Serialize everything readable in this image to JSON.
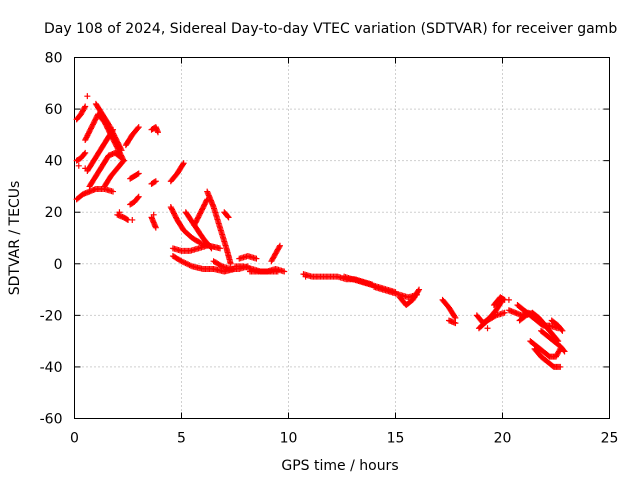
{
  "chart_data": {
    "type": "scatter",
    "title": "Day 108 of 2024, Sidereal Day-to-day VTEC variation (SDTVAR) for receiver gamb",
    "xlabel": "GPS time / hours",
    "ylabel": "SDTVAR / TECUs",
    "xlim": [
      0,
      25
    ],
    "ylim": [
      -60,
      80
    ],
    "xticks": [
      0,
      5,
      10,
      15,
      20,
      25
    ],
    "yticks": [
      -60,
      -40,
      -20,
      0,
      20,
      40,
      60,
      80
    ],
    "grid": true,
    "marker": "+",
    "color": "#ff0000",
    "arcs": [
      {
        "x": [
          0.1,
          0.3,
          0.5
        ],
        "y": [
          56,
          58,
          61
        ]
      },
      {
        "x": [
          0.1,
          0.3,
          0.5
        ],
        "y": [
          40,
          41,
          43
        ]
      },
      {
        "x": [
          0.1,
          0.4,
          0.7,
          1.0,
          1.4,
          1.8
        ],
        "y": [
          25,
          27,
          28,
          29,
          29,
          28
        ]
      },
      {
        "x": [
          0.5,
          0.8,
          1.1,
          1.4,
          1.7,
          2.0,
          2.3
        ],
        "y": [
          48,
          53,
          58,
          55,
          50,
          45,
          40
        ]
      },
      {
        "x": [
          0.6,
          0.9,
          1.2,
          1.5,
          1.8
        ],
        "y": [
          36,
          40,
          44,
          48,
          52
        ]
      },
      {
        "x": [
          0.7,
          1.0,
          1.3,
          1.6,
          1.9,
          2.2
        ],
        "y": [
          30,
          34,
          38,
          42,
          43,
          41
        ]
      },
      {
        "x": [
          1.0,
          1.3,
          1.6,
          1.9,
          2.2
        ],
        "y": [
          62,
          58,
          54,
          49,
          44
        ]
      },
      {
        "x": [
          1.4,
          1.7,
          2.0,
          2.3
        ],
        "y": [
          30,
          34,
          37,
          40
        ]
      },
      {
        "x": [
          2.0,
          2.3,
          2.5
        ],
        "y": [
          19,
          18,
          17
        ]
      },
      {
        "x": [
          2.4,
          2.7,
          3.0
        ],
        "y": [
          46,
          50,
          53
        ]
      },
      {
        "x": [
          2.6,
          2.8,
          3.0
        ],
        "y": [
          33,
          34,
          35
        ]
      },
      {
        "x": [
          2.6,
          2.8,
          3.0
        ],
        "y": [
          23,
          24,
          26
        ]
      },
      {
        "x": [
          3.6,
          3.8,
          3.9
        ],
        "y": [
          52,
          53,
          51
        ]
      },
      {
        "x": [
          3.6,
          3.7,
          3.8
        ],
        "y": [
          18,
          16,
          14
        ]
      },
      {
        "x": [
          3.6,
          3.8
        ],
        "y": [
          31,
          32
        ]
      },
      {
        "x": [
          4.5,
          4.8,
          5.1
        ],
        "y": [
          32,
          35,
          39
        ]
      },
      {
        "x": [
          4.5,
          4.8,
          5.1,
          5.5,
          5.9,
          6.3,
          6.8
        ],
        "y": [
          22,
          17,
          13,
          10,
          8,
          7,
          6
        ]
      },
      {
        "x": [
          4.6,
          5.0,
          5.4,
          5.8,
          6.2
        ],
        "y": [
          6,
          5,
          5,
          6,
          7
        ]
      },
      {
        "x": [
          4.6,
          5.0,
          5.5,
          6.0,
          6.5,
          7.0,
          7.5
        ],
        "y": [
          3,
          1,
          -1,
          -2,
          -2,
          -3,
          -2
        ]
      },
      {
        "x": [
          5.2,
          5.6,
          6.0,
          6.4
        ],
        "y": [
          20,
          15,
          10,
          6
        ]
      },
      {
        "x": [
          5.6,
          5.9,
          6.2
        ],
        "y": [
          15,
          20,
          25
        ]
      },
      {
        "x": [
          6.2,
          6.5,
          6.8,
          7.1,
          7.3
        ],
        "y": [
          28,
          22,
          14,
          6,
          0
        ]
      },
      {
        "x": [
          6.5,
          6.9,
          7.3,
          7.7,
          8.1
        ],
        "y": [
          1,
          -1,
          -2,
          -2,
          -1
        ]
      },
      {
        "x": [
          7.0,
          7.2
        ],
        "y": [
          20,
          18
        ]
      },
      {
        "x": [
          7.5,
          7.9,
          8.3,
          8.7,
          9.1,
          9.5
        ],
        "y": [
          -1,
          -1,
          -2,
          -3,
          -3,
          -3
        ]
      },
      {
        "x": [
          7.7,
          8.1,
          8.5
        ],
        "y": [
          2,
          3,
          2
        ]
      },
      {
        "x": [
          8.2,
          8.6,
          9.0,
          9.4,
          9.8
        ],
        "y": [
          -3,
          -3,
          -3,
          -2,
          -3
        ]
      },
      {
        "x": [
          9.2,
          9.4,
          9.6
        ],
        "y": [
          1,
          4,
          7
        ]
      },
      {
        "x": [
          10.7,
          11.1,
          11.5,
          11.9,
          12.3,
          12.7,
          13.1,
          13.5,
          13.9
        ],
        "y": [
          -4,
          -5,
          -5,
          -5,
          -5,
          -6,
          -6,
          -7,
          -8
        ]
      },
      {
        "x": [
          12.6,
          13.0,
          13.4,
          13.8,
          14.2,
          14.6,
          15.0
        ],
        "y": [
          -5,
          -6,
          -7,
          -8,
          -9,
          -10,
          -11
        ]
      },
      {
        "x": [
          14.0,
          14.4,
          14.8,
          15.2,
          15.6,
          16.0
        ],
        "y": [
          -9,
          -10,
          -11,
          -12,
          -13,
          -12
        ]
      },
      {
        "x": [
          15.2,
          15.5,
          15.8,
          16.1
        ],
        "y": [
          -13,
          -16,
          -14,
          -10
        ]
      },
      {
        "x": [
          17.2,
          17.5,
          17.8
        ],
        "y": [
          -14,
          -17,
          -21
        ]
      },
      {
        "x": [
          17.5,
          17.8
        ],
        "y": [
          -22,
          -23
        ]
      },
      {
        "x": [
          18.8,
          19.1,
          19.4,
          19.7,
          20.0
        ],
        "y": [
          -20,
          -23,
          -21,
          -18,
          -14
        ]
      },
      {
        "x": [
          18.9,
          19.3,
          19.7,
          20.1
        ],
        "y": [
          -25,
          -22,
          -20,
          -19
        ]
      },
      {
        "x": [
          19.6,
          19.9,
          20.1
        ],
        "y": [
          -16,
          -13,
          -14
        ]
      },
      {
        "x": [
          20.3,
          20.6,
          20.9,
          21.2,
          21.5,
          21.8,
          22.1
        ],
        "y": [
          -18,
          -19,
          -20,
          -19,
          -20,
          -22,
          -25
        ]
      },
      {
        "x": [
          20.7,
          21.0,
          21.3,
          21.6,
          21.9,
          22.2,
          22.6
        ],
        "y": [
          -16,
          -18,
          -20,
          -22,
          -24,
          -24,
          -25
        ]
      },
      {
        "x": [
          20.8,
          21.1,
          21.4,
          21.7,
          22.0,
          22.3,
          22.6
        ],
        "y": [
          -22,
          -20,
          -19,
          -21,
          -24,
          -27,
          -30
        ]
      },
      {
        "x": [
          21.3,
          21.6,
          21.9,
          22.2,
          22.5,
          22.7
        ],
        "y": [
          -30,
          -32,
          -34,
          -36,
          -36,
          -33
        ]
      },
      {
        "x": [
          21.5,
          21.8,
          22.1,
          22.4,
          22.7
        ],
        "y": [
          -33,
          -36,
          -38,
          -40,
          -40
        ]
      },
      {
        "x": [
          21.8,
          22.1,
          22.4,
          22.7,
          22.9
        ],
        "y": [
          -26,
          -28,
          -30,
          -32,
          -34
        ]
      },
      {
        "x": [
          22.3,
          22.6,
          22.8
        ],
        "y": [
          -22,
          -24,
          -26
        ]
      }
    ],
    "points": {
      "x": [
        0.6,
        0.2,
        0.5,
        2.1,
        2.7,
        3.7,
        19.3,
        20.3,
        10.8
      ],
      "y": [
        65,
        38,
        37,
        20,
        17,
        19,
        -25,
        -14,
        -5
      ]
    }
  }
}
